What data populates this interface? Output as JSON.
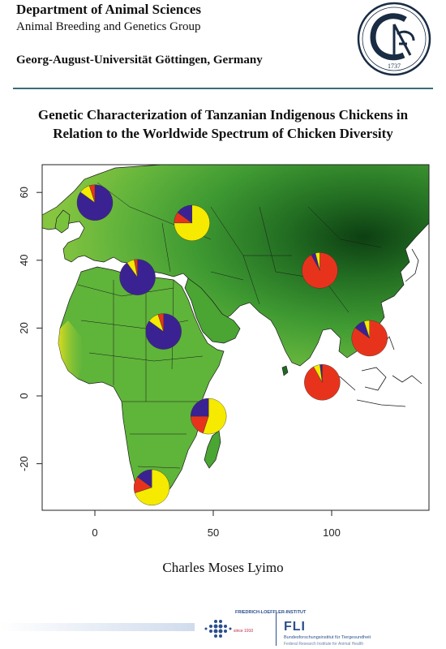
{
  "header": {
    "department": "Department of Animal Sciences",
    "group": "Animal Breeding and Genetics Group",
    "university": "Georg-August-Universität Göttingen, Germany",
    "seal_year": "1737"
  },
  "title": {
    "line1": "Genetic Characterization of Tanzanian Indigenous Chickens in",
    "line2": "Relation to the Worldwide Spectrum of Chicken Diversity"
  },
  "map": {
    "x_ticks": [
      "0",
      "50",
      "100"
    ],
    "y_ticks": [
      "60",
      "40",
      "20",
      "0",
      "-20"
    ],
    "colors": {
      "purple": "#3b2292",
      "yellow": "#f5ea00",
      "red": "#e8331c",
      "sea": "#ffffff",
      "land_light": "#6bbf3a",
      "land_dark": "#0d3f12"
    },
    "pies": [
      {
        "name": "scandinavia",
        "lon": 0,
        "lat": 57,
        "slices": [
          {
            "color": "purple",
            "value": 0.85
          },
          {
            "color": "yellow",
            "value": 0.1
          },
          {
            "color": "red",
            "value": 0.05
          }
        ]
      },
      {
        "name": "eastern-europe",
        "lon": 41,
        "lat": 51,
        "slices": [
          {
            "color": "yellow",
            "value": 0.75
          },
          {
            "color": "red",
            "value": 0.1
          },
          {
            "color": "purple",
            "value": 0.15
          }
        ]
      },
      {
        "name": "north-africa",
        "lon": 18,
        "lat": 35,
        "slices": [
          {
            "color": "purple",
            "value": 0.9
          },
          {
            "color": "yellow",
            "value": 0.07
          },
          {
            "color": "red",
            "value": 0.03
          }
        ]
      },
      {
        "name": "sudan",
        "lon": 29,
        "lat": 19,
        "slices": [
          {
            "color": "purple",
            "value": 0.85
          },
          {
            "color": "yellow",
            "value": 0.1
          },
          {
            "color": "red",
            "value": 0.05
          }
        ]
      },
      {
        "name": "tanzania",
        "lon": 48,
        "lat": -6,
        "slices": [
          {
            "color": "yellow",
            "value": 0.55
          },
          {
            "color": "red",
            "value": 0.2
          },
          {
            "color": "purple",
            "value": 0.25
          }
        ]
      },
      {
        "name": "south-africa",
        "lon": 24,
        "lat": -27,
        "slices": [
          {
            "color": "yellow",
            "value": 0.7
          },
          {
            "color": "red",
            "value": 0.15
          },
          {
            "color": "purple",
            "value": 0.15
          }
        ]
      },
      {
        "name": "china",
        "lon": 95,
        "lat": 37,
        "slices": [
          {
            "color": "red",
            "value": 0.92
          },
          {
            "color": "purple",
            "value": 0.04
          },
          {
            "color": "yellow",
            "value": 0.04
          }
        ]
      },
      {
        "name": "indonesia",
        "lon": 96,
        "lat": 4,
        "slices": [
          {
            "color": "red",
            "value": 0.92
          },
          {
            "color": "yellow",
            "value": 0.06
          },
          {
            "color": "purple",
            "value": 0.02
          }
        ]
      },
      {
        "name": "vietnam",
        "lon": 116,
        "lat": 17,
        "slices": [
          {
            "color": "red",
            "value": 0.85
          },
          {
            "color": "purple",
            "value": 0.1
          },
          {
            "color": "yellow",
            "value": 0.05
          }
        ]
      }
    ]
  },
  "author": "Charles Moses Lyimo",
  "footer": {
    "institute_top": "FRIEDRICH-LOEFFLER-INSTITUT",
    "since": "since 1910",
    "fli": "FLI",
    "fli_de": "Bundesforschungsinstitut für Tiergesundheit",
    "fli_en": "Federal Research Institute for Animal Health"
  }
}
